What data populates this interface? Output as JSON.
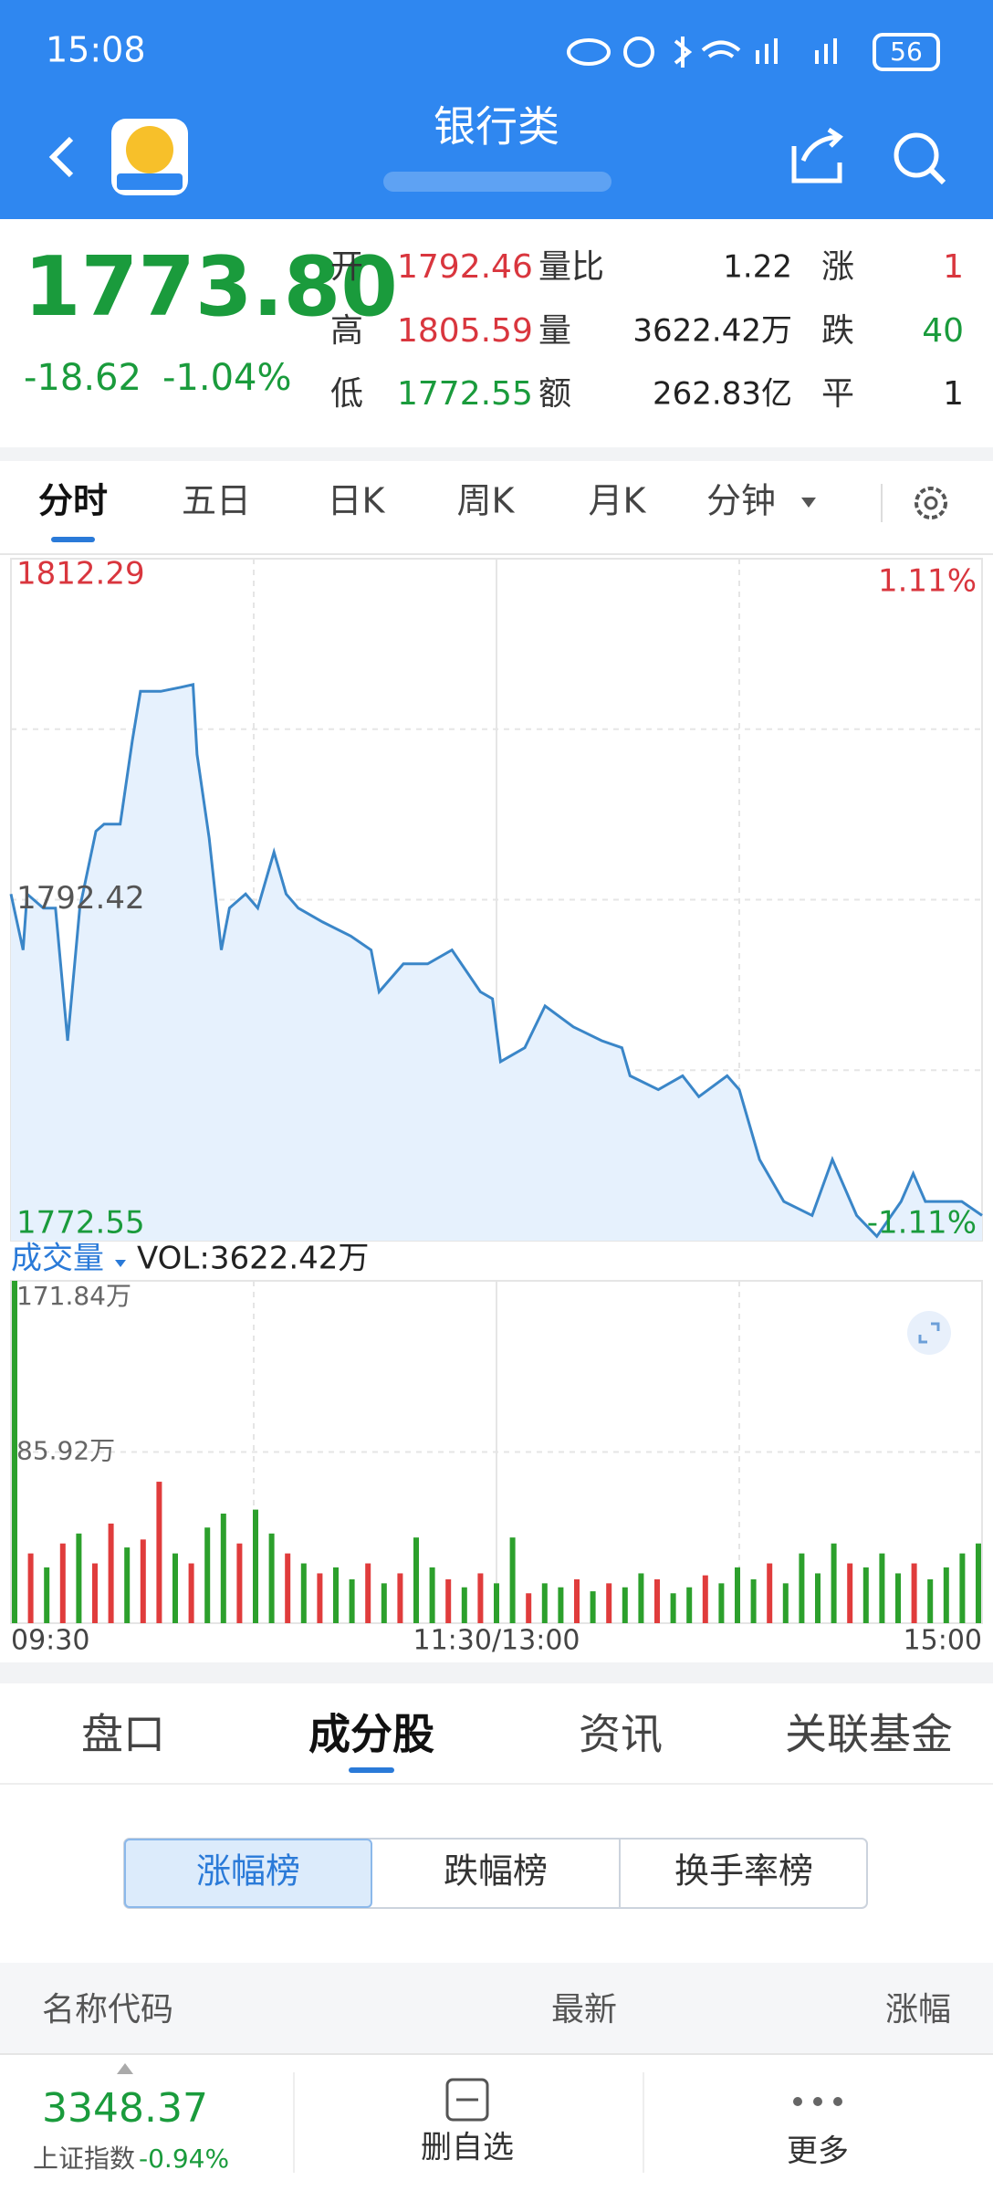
{
  "status_bar": {
    "time": "15:08",
    "battery": "56"
  },
  "header": {
    "title": "银行类"
  },
  "quote": {
    "price": "1773.80",
    "change": "-18.62",
    "change_pct": "-1.04%",
    "stats": [
      [
        "开",
        "1792.46",
        "量比",
        "1.22",
        "涨",
        "1"
      ],
      [
        "高",
        "1805.59",
        "量",
        "3622.42万",
        "跌",
        "40"
      ],
      [
        "低",
        "1772.55",
        "额",
        "262.83亿",
        "平",
        "1"
      ]
    ]
  },
  "tabs": [
    "分时",
    "五日",
    "日K",
    "周K",
    "月K",
    "分钟"
  ],
  "chart_data": [
    {
      "type": "line",
      "color": "#3a86c8",
      "fill": "#e6f1fd",
      "x": [
        0,
        3,
        4,
        8,
        11,
        14,
        17,
        21,
        23,
        27,
        30,
        32,
        37,
        42,
        45,
        46,
        49,
        52,
        54,
        58,
        61,
        65,
        68,
        71,
        77,
        84,
        89,
        91,
        97,
        103,
        109,
        116,
        119,
        121,
        127,
        132,
        139,
        146,
        151,
        153,
        160,
        166,
        170,
        177,
        180,
        185,
        191,
        198,
        203,
        209,
        214,
        220,
        223,
        226,
        235,
        240
      ],
      "values": [
        1792.75,
        1789.49,
        1792.75,
        1791.93,
        1791.93,
        1784.2,
        1791.93,
        1796.41,
        1796.82,
        1796.82,
        1801.7,
        1804.56,
        1804.56,
        1804.8,
        1804.96,
        1800.89,
        1796.0,
        1789.49,
        1791.93,
        1792.75,
        1791.93,
        1795.19,
        1792.75,
        1791.93,
        1791.12,
        1790.3,
        1789.49,
        1787.05,
        1788.68,
        1788.68,
        1789.49,
        1787.05,
        1786.64,
        1782.98,
        1783.79,
        1786.23,
        1785.01,
        1784.2,
        1783.79,
        1782.16,
        1781.35,
        1782.16,
        1780.94,
        1782.16,
        1781.35,
        1777.28,
        1774.83,
        1774.02,
        1777.28,
        1774.02,
        1772.8,
        1774.83,
        1776.46,
        1774.83,
        1774.83,
        1774.02
      ],
      "xlim": [
        0,
        240
      ],
      "ylim": [
        1772.55,
        1812.29
      ],
      "yticks": [
        1772.55,
        1792.42,
        1812.29
      ],
      "y2lim": [
        -1.11,
        1.11
      ],
      "y2ticks": [
        {
          "value": -1.11,
          "label": "-1.11%"
        },
        {
          "value": 1.11,
          "label": "1.11%"
        }
      ]
    },
    {
      "type": "bar",
      "title": "成交量",
      "subtitle": "VOL:3622.42万",
      "x": [
        0,
        4,
        8,
        12,
        16,
        20,
        24,
        28,
        32,
        36,
        40,
        44,
        48,
        52,
        56,
        60,
        64,
        68,
        72,
        76,
        80,
        84,
        88,
        92,
        96,
        100,
        104,
        108,
        112,
        116,
        120,
        124,
        128,
        132,
        136,
        140,
        144,
        148,
        152,
        156,
        160,
        164,
        168,
        172,
        176,
        180,
        184,
        188,
        192,
        196,
        200,
        204,
        208,
        212,
        216,
        220,
        224,
        228,
        232,
        236,
        240
      ],
      "values": [
        171.84,
        35,
        28,
        40,
        45,
        30,
        50,
        38,
        42,
        71,
        35,
        30,
        48,
        55,
        40,
        57,
        45,
        35,
        30,
        25,
        28,
        22,
        30,
        20,
        25,
        43,
        28,
        22,
        18,
        25,
        20,
        43,
        15,
        20,
        18,
        22,
        16,
        20,
        18,
        25,
        22,
        15,
        18,
        24,
        20,
        28,
        22,
        30,
        20,
        35,
        25,
        40,
        30,
        28,
        35,
        25,
        30,
        22,
        28,
        35,
        40
      ],
      "colors": [
        "#2ca02c",
        "#e03c3c",
        "#2ca02c",
        "#e03c3c",
        "#2ca02c",
        "#e03c3c",
        "#e03c3c",
        "#2ca02c",
        "#e03c3c",
        "#e03c3c",
        "#2ca02c",
        "#e03c3c",
        "#2ca02c",
        "#2ca02c",
        "#e03c3c",
        "#2ca02c",
        "#2ca02c",
        "#e03c3c",
        "#2ca02c",
        "#e03c3c",
        "#2ca02c",
        "#2ca02c",
        "#e03c3c",
        "#2ca02c",
        "#e03c3c",
        "#2ca02c",
        "#2ca02c",
        "#e03c3c",
        "#2ca02c",
        "#e03c3c",
        "#2ca02c",
        "#2ca02c",
        "#e03c3c",
        "#2ca02c",
        "#2ca02c",
        "#e03c3c",
        "#2ca02c",
        "#e03c3c",
        "#2ca02c",
        "#2ca02c",
        "#e03c3c",
        "#2ca02c",
        "#2ca02c",
        "#e03c3c",
        "#2ca02c",
        "#2ca02c",
        "#2ca02c",
        "#e03c3c",
        "#2ca02c",
        "#2ca02c",
        "#2ca02c",
        "#2ca02c",
        "#e03c3c",
        "#2ca02c",
        "#2ca02c",
        "#2ca02c",
        "#e03c3c",
        "#2ca02c",
        "#2ca02c",
        "#2ca02c",
        "#2ca02c"
      ],
      "xlim": [
        0,
        240
      ],
      "ylim": [
        0,
        171.84
      ],
      "yticks": [
        {
          "value": 85.92,
          "label": "85.92万"
        },
        {
          "value": 171.84,
          "label": "171.84万"
        }
      ],
      "xticks": [
        {
          "value": 0,
          "label": "09:30"
        },
        {
          "value": 120,
          "label": "11:30/13:00"
        },
        {
          "value": 240,
          "label": "15:00"
        }
      ]
    }
  ],
  "sub_tabs": [
    "盘口",
    "成分股",
    "资讯",
    "关联基金"
  ],
  "segments": [
    "涨幅榜",
    "跌幅榜",
    "换手率榜"
  ],
  "list_header": [
    "名称代码",
    "最新",
    "涨幅"
  ],
  "bottom_bar": {
    "index_value": "3348.37",
    "index_name": "上证指数",
    "index_change": "-0.94%",
    "actions": [
      "删自选",
      "更多"
    ]
  }
}
